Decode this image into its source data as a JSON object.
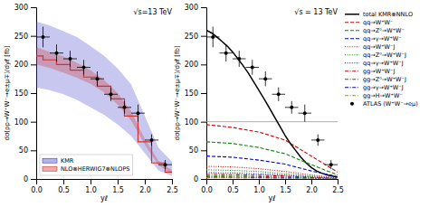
{
  "chart_data": [
    {
      "type": "line",
      "title": "√s=13 TeV",
      "xlabel": "yℓ",
      "ylabel": "dσ(pp→W⁺W⁻→e±μ∓)/dyℓ [fb]",
      "xlim": [
        0,
        2.5
      ],
      "ylim": [
        0,
        300
      ],
      "xticks": [
        {
          "value": 0.0,
          "label": "0.0"
        },
        0.5,
        {
          "value": 1.0,
          "label": "1.0"
        },
        1.5,
        {
          "value": 2.0,
          "label": "2.0"
        },
        2.5
      ],
      "yticks": [
        0,
        50,
        100,
        150,
        200,
        250,
        300
      ],
      "legend": "lower left",
      "series": [
        {
          "name": "KMR",
          "type": "band",
          "color": "#4444cc",
          "x": [
            0.0,
            0.25,
            0.5,
            0.75,
            1.0,
            1.25,
            1.5,
            1.75,
            2.0,
            2.25,
            2.5
          ],
          "upper": [
            275,
            268,
            258,
            248,
            232,
            215,
            193,
            165,
            110,
            55,
            30
          ],
          "lower": [
            160,
            155,
            148,
            138,
            125,
            112,
            95,
            75,
            45,
            15,
            5
          ]
        },
        {
          "name": "NLO⊗HERWIG7⊗NLOPS",
          "type": "band",
          "color": "#cc3333",
          "line_style": "step",
          "x": [
            0.0,
            0.25,
            0.5,
            0.75,
            1.0,
            1.25,
            1.5,
            1.75,
            2.0,
            2.25,
            2.5
          ],
          "values": [
            215,
            208,
            200,
            190,
            178,
            162,
            140,
            110,
            65,
            28,
            12
          ],
          "upper": [
            230,
            222,
            214,
            203,
            190,
            173,
            150,
            118,
            70,
            32,
            15
          ],
          "lower": [
            200,
            194,
            186,
            177,
            166,
            151,
            130,
            102,
            60,
            24,
            9
          ]
        },
        {
          "type": "scatter",
          "color": "#000000",
          "marker": "circle",
          "x": [
            0.125,
            0.375,
            0.625,
            0.875,
            1.125,
            1.375,
            1.625,
            1.875,
            2.125,
            2.375
          ],
          "values": [
            248,
            220,
            210,
            195,
            175,
            148,
            125,
            115,
            68,
            25
          ],
          "errors": [
            18,
            15,
            14,
            13,
            13,
            12,
            11,
            15,
            10,
            8
          ],
          "x_errors": [
            0.125,
            0.125,
            0.125,
            0.125,
            0.125,
            0.125,
            0.125,
            0.125,
            0.125,
            0.125
          ]
        }
      ]
    },
    {
      "type": "line",
      "title": "√s = 13 TeV",
      "xlabel": "yℓ",
      "ylabel": "dσ(pp→W⁺W⁻→e±μ∓)/dyℓ [fb]",
      "xlim": [
        0,
        2.5
      ],
      "ylim": [
        0,
        300
      ],
      "xticks": [
        {
          "value": 0.0,
          "label": "0.0"
        },
        0.5,
        {
          "value": 1.0,
          "label": "1.0"
        },
        1.5,
        {
          "value": 2.0,
          "label": "2.0"
        },
        2.5
      ],
      "yticks": [
        0,
        50,
        100,
        150,
        200,
        250,
        300
      ],
      "legend": "right",
      "hline": 100,
      "series": [
        {
          "name": "total KMR⊗NNLO",
          "type": "line",
          "color": "#000000",
          "line_style": "solid",
          "x": [
            0.0,
            0.1,
            0.2,
            0.3,
            0.4,
            0.5,
            0.6,
            0.7,
            0.8,
            0.9,
            1.0,
            1.1,
            1.2,
            1.3,
            1.4,
            1.5,
            1.6,
            1.7,
            1.8,
            1.9,
            2.0,
            2.1,
            2.2,
            2.3,
            2.4,
            2.5
          ],
          "values": [
            260,
            255,
            248,
            240,
            232,
            222,
            210,
            198,
            185,
            170,
            155,
            140,
            124,
            108,
            92,
            76,
            62,
            50,
            38,
            28,
            20,
            14,
            10,
            7,
            5,
            3
          ]
        },
        {
          "name": "qq→W⁺W⁻",
          "type": "line",
          "color": "#cc0000",
          "line_style": "dashed",
          "x": [
            0.0,
            0.5,
            1.0,
            1.5,
            2.0,
            2.5
          ],
          "values": [
            95,
            90,
            82,
            68,
            40,
            12
          ]
        },
        {
          "name": "qq→Z⁰→W⁺W⁻",
          "type": "line",
          "color": "#008800",
          "line_style": "dashed",
          "x": [
            0.0,
            0.5,
            1.0,
            1.5,
            2.0,
            2.5
          ],
          "values": [
            65,
            62,
            55,
            44,
            25,
            7
          ]
        },
        {
          "name": "qq→γ→W⁺W⁻",
          "type": "line",
          "color": "#0000cc",
          "line_style": "dashed",
          "x": [
            0.0,
            0.5,
            1.0,
            1.5,
            2.0,
            2.5
          ],
          "values": [
            40,
            38,
            33,
            26,
            14,
            4
          ]
        },
        {
          "name": "qq→W⁺W⁻J",
          "type": "line",
          "color": "#cc0000",
          "line_style": "dotted",
          "x": [
            0.0,
            0.5,
            1.0,
            1.5,
            2.0,
            2.5
          ],
          "values": [
            22,
            21,
            18,
            13,
            7,
            2
          ]
        },
        {
          "name": "qq→Z⁰→W⁺W⁻J",
          "type": "line",
          "color": "#008800",
          "line_style": "dotted",
          "x": [
            0.0,
            0.5,
            1.0,
            1.5,
            2.0,
            2.5
          ],
          "values": [
            16,
            15,
            13,
            9,
            5,
            1.5
          ]
        },
        {
          "name": "qq→γ→W⁺W⁻J",
          "type": "line",
          "color": "#0000cc",
          "line_style": "dotted",
          "x": [
            0.0,
            0.5,
            1.0,
            1.5,
            2.0,
            2.5
          ],
          "values": [
            11,
            10.5,
            9,
            6.5,
            3.5,
            1
          ]
        },
        {
          "name": "gg→W⁺W⁻J",
          "type": "line",
          "color": "#cc0000",
          "line_style": "dashdot",
          "x": [
            0.0,
            0.5,
            1.0,
            1.5,
            2.0,
            2.5
          ],
          "values": [
            8,
            7.5,
            6.5,
            5,
            2.5,
            0.7
          ]
        },
        {
          "name": "gg→Z⁰→W⁺W⁻J",
          "type": "line",
          "color": "#008800",
          "line_style": "dashdot",
          "x": [
            0.0,
            0.5,
            1.0,
            1.5,
            2.0,
            2.5
          ],
          "values": [
            5,
            4.8,
            4.2,
            3.2,
            1.6,
            0.4
          ]
        },
        {
          "name": "gg→γ→W⁺W⁻J",
          "type": "line",
          "color": "#0000cc",
          "line_style": "dashdot",
          "x": [
            0.0,
            0.5,
            1.0,
            1.5,
            2.0,
            2.5
          ],
          "values": [
            3,
            2.9,
            2.5,
            1.9,
            0.9,
            0.25
          ]
        },
        {
          "name": "gg→H→W⁺W⁻",
          "type": "line",
          "color": "#cc8800",
          "line_style": "dashdot",
          "x": [
            0.0,
            0.5,
            1.0,
            1.5,
            2.0,
            2.5
          ],
          "values": [
            2,
            1.9,
            1.6,
            1.2,
            0.6,
            0.15
          ]
        },
        {
          "name": "ATLAS (W⁺W⁻→eμ)",
          "type": "scatter",
          "color": "#000000",
          "marker": "circle",
          "x": [
            0.125,
            0.375,
            0.625,
            0.875,
            1.125,
            1.375,
            1.625,
            1.875,
            2.125,
            2.375
          ],
          "values": [
            248,
            220,
            210,
            195,
            175,
            148,
            125,
            115,
            68,
            25
          ],
          "errors": [
            18,
            15,
            14,
            13,
            13,
            12,
            11,
            15,
            10,
            8
          ],
          "x_errors": [
            0.125,
            0.125,
            0.125,
            0.125,
            0.125,
            0.125,
            0.125,
            0.125,
            0.125,
            0.125
          ]
        }
      ]
    }
  ]
}
